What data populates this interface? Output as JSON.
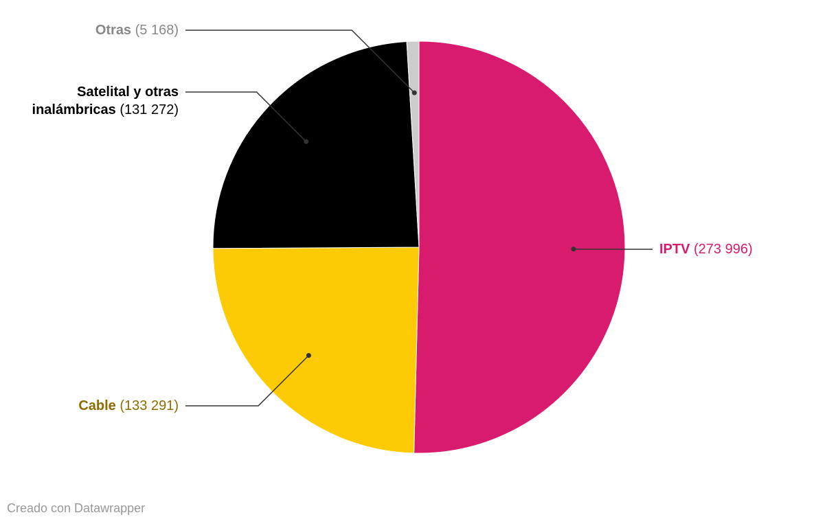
{
  "chart_data": {
    "type": "pie",
    "categories": [
      "IPTV",
      "Cable",
      "Satelital y otras inalámbricas",
      "Otras"
    ],
    "values": [
      273996,
      133291,
      131272,
      5168
    ],
    "value_labels": [
      "(273 996)",
      "(133 291)",
      "(131 272)",
      "(5 168)"
    ],
    "colors": [
      "#d81b6d",
      "#fccb05",
      "#000000",
      "#cccccc"
    ],
    "label_colors": [
      "#d81b6d",
      "#8c6d00",
      "#000000",
      "#888888"
    ],
    "footer": "Creado con Datawrapper"
  }
}
